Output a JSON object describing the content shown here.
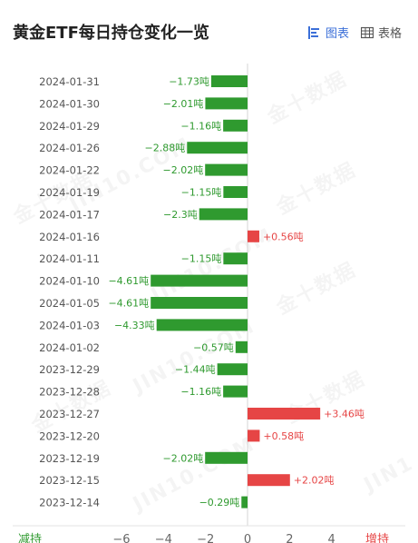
{
  "header": {
    "title": "黄金ETF每日持仓变化一览",
    "tab_chart": "图表",
    "tab_table": "表格"
  },
  "colors": {
    "negative": "#2f9a2f",
    "positive": "#e64545",
    "accent": "#3b6fd8"
  },
  "icons": {
    "chart_tab": "bar-chart-icon",
    "table_tab": "table-grid-icon"
  },
  "chart_data": {
    "type": "bar",
    "orientation": "horizontal",
    "title": "黄金ETF每日持仓变化一览",
    "categories": [
      "2024-01-31",
      "2024-01-30",
      "2024-01-29",
      "2024-01-26",
      "2024-01-22",
      "2024-01-19",
      "2024-01-17",
      "2024-01-16",
      "2024-01-11",
      "2024-01-10",
      "2024-01-05",
      "2024-01-03",
      "2024-01-02",
      "2023-12-29",
      "2023-12-28",
      "2023-12-27",
      "2023-12-20",
      "2023-12-19",
      "2023-12-15",
      "2023-12-14"
    ],
    "values": [
      -1.73,
      -2.01,
      -1.16,
      -2.88,
      -2.02,
      -1.15,
      -2.3,
      0.56,
      -1.15,
      -4.61,
      -4.61,
      -4.33,
      -0.57,
      -1.44,
      -1.16,
      3.46,
      0.58,
      -2.02,
      2.02,
      -0.29
    ],
    "value_labels": [
      "−1.73吨",
      "−2.01吨",
      "−1.16吨",
      "−2.88吨",
      "−2.02吨",
      "−1.15吨",
      "−2.3吨",
      "+0.56吨",
      "−1.15吨",
      "−4.61吨",
      "−4.61吨",
      "−4.33吨",
      "−0.57吨",
      "−1.44吨",
      "−1.16吨",
      "+3.46吨",
      "+0.58吨",
      "−2.02吨",
      "+2.02吨",
      "−0.29吨"
    ],
    "xlim": [
      -6,
      6
    ],
    "ticks": [
      -6,
      -4,
      -2,
      0,
      2,
      4
    ],
    "tick_labels": [
      "−6",
      "−4",
      "−2",
      "0",
      "2",
      "4"
    ],
    "left_label": "减持",
    "right_label": "增持"
  }
}
